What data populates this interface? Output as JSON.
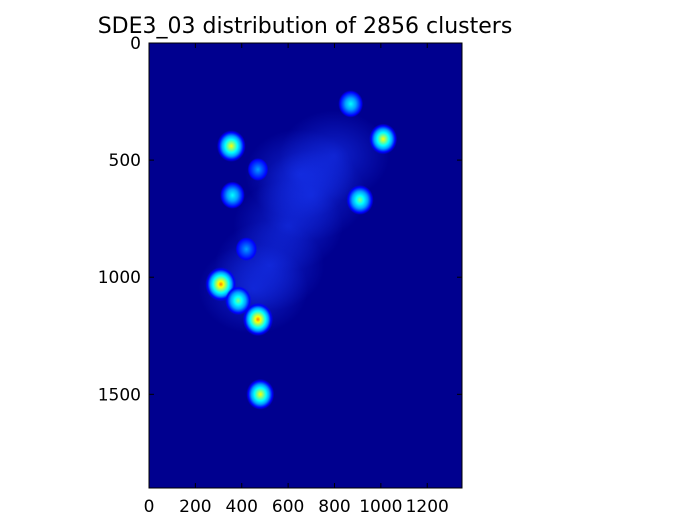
{
  "chart_data": {
    "type": "heatmap",
    "title": "SDE3_03 distribution of 2856 clusters",
    "xlabel": "",
    "ylabel": "",
    "xlim": [
      0,
      1350
    ],
    "ylim": [
      1900,
      0
    ],
    "y_inverted": true,
    "colormap": "jet",
    "background_color": "#00008f",
    "x_ticks": [
      0,
      200,
      400,
      600,
      800,
      1000,
      1200
    ],
    "x_tick_labels": [
      "0",
      "200",
      "400",
      "600",
      "800",
      "1000",
      "1200"
    ],
    "y_ticks": [
      0,
      500,
      1000,
      1500
    ],
    "y_tick_labels": [
      "0",
      "500",
      "1000",
      "1500"
    ],
    "grid": false,
    "hotspots": [
      {
        "x": 870,
        "y": 260,
        "intensity": 0.55
      },
      {
        "x": 1010,
        "y": 410,
        "intensity": 0.75
      },
      {
        "x": 355,
        "y": 440,
        "intensity": 0.8
      },
      {
        "x": 470,
        "y": 540,
        "intensity": 0.3
      },
      {
        "x": 360,
        "y": 650,
        "intensity": 0.55
      },
      {
        "x": 910,
        "y": 670,
        "intensity": 0.7
      },
      {
        "x": 420,
        "y": 880,
        "intensity": 0.35
      },
      {
        "x": 310,
        "y": 1030,
        "intensity": 0.95
      },
      {
        "x": 385,
        "y": 1100,
        "intensity": 0.65
      },
      {
        "x": 470,
        "y": 1180,
        "intensity": 0.9
      },
      {
        "x": 480,
        "y": 1500,
        "intensity": 0.75
      }
    ],
    "diffuse_regions": [
      {
        "x": 650,
        "y": 560,
        "intensity": 0.15
      },
      {
        "x": 800,
        "y": 480,
        "intensity": 0.12
      },
      {
        "x": 600,
        "y": 780,
        "intensity": 0.15
      },
      {
        "x": 520,
        "y": 950,
        "intensity": 0.12
      },
      {
        "x": 700,
        "y": 650,
        "intensity": 0.1
      },
      {
        "x": 450,
        "y": 1050,
        "intensity": 0.12
      }
    ]
  }
}
